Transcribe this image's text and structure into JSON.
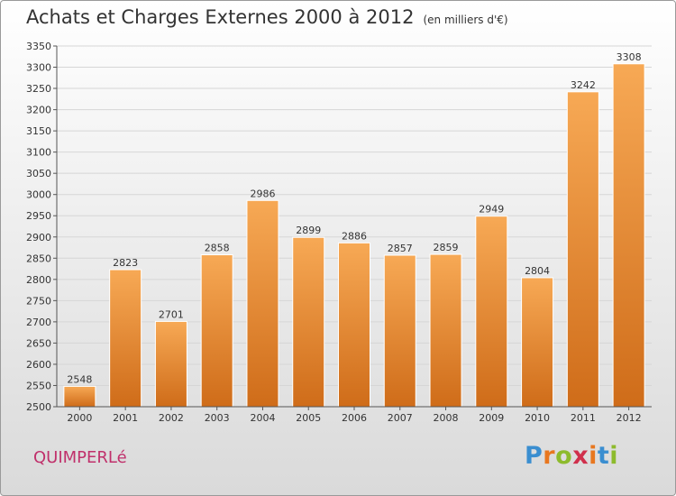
{
  "header": {
    "title": "Achats et Charges Externes 2000 à 2012",
    "subtitle": "(en milliers d'€)"
  },
  "footer": {
    "place": "QUIMPERLé",
    "brand_letters": [
      "P",
      "r",
      "o",
      "x",
      "i",
      "t",
      "i"
    ],
    "brand_colors": [
      "#3a8ed0",
      "#e8771f",
      "#8dbb2c",
      "#d0304c",
      "#e8771f",
      "#3a8ed0",
      "#8dbb2c"
    ]
  },
  "chart_data": {
    "type": "bar",
    "title": "Achats et Charges Externes 2000 à 2012",
    "subtitle": "(en milliers d'€)",
    "categories": [
      "2000",
      "2001",
      "2002",
      "2003",
      "2004",
      "2005",
      "2006",
      "2007",
      "2008",
      "2009",
      "2010",
      "2011",
      "2012"
    ],
    "values": [
      2548,
      2823,
      2701,
      2858,
      2986,
      2899,
      2886,
      2857,
      2859,
      2949,
      2804,
      3242,
      3308
    ],
    "ylim": [
      2500,
      3350
    ],
    "yticks": [
      2500,
      2550,
      2600,
      2650,
      2700,
      2750,
      2800,
      2850,
      2900,
      2950,
      3000,
      3050,
      3100,
      3150,
      3200,
      3250,
      3300,
      3350
    ],
    "grid": true,
    "legend": "none",
    "colors": {
      "bar_light": "#f7a955",
      "bar_dark": "#cf6c19",
      "grid": "#d6d6d6",
      "axis": "#555555"
    }
  }
}
